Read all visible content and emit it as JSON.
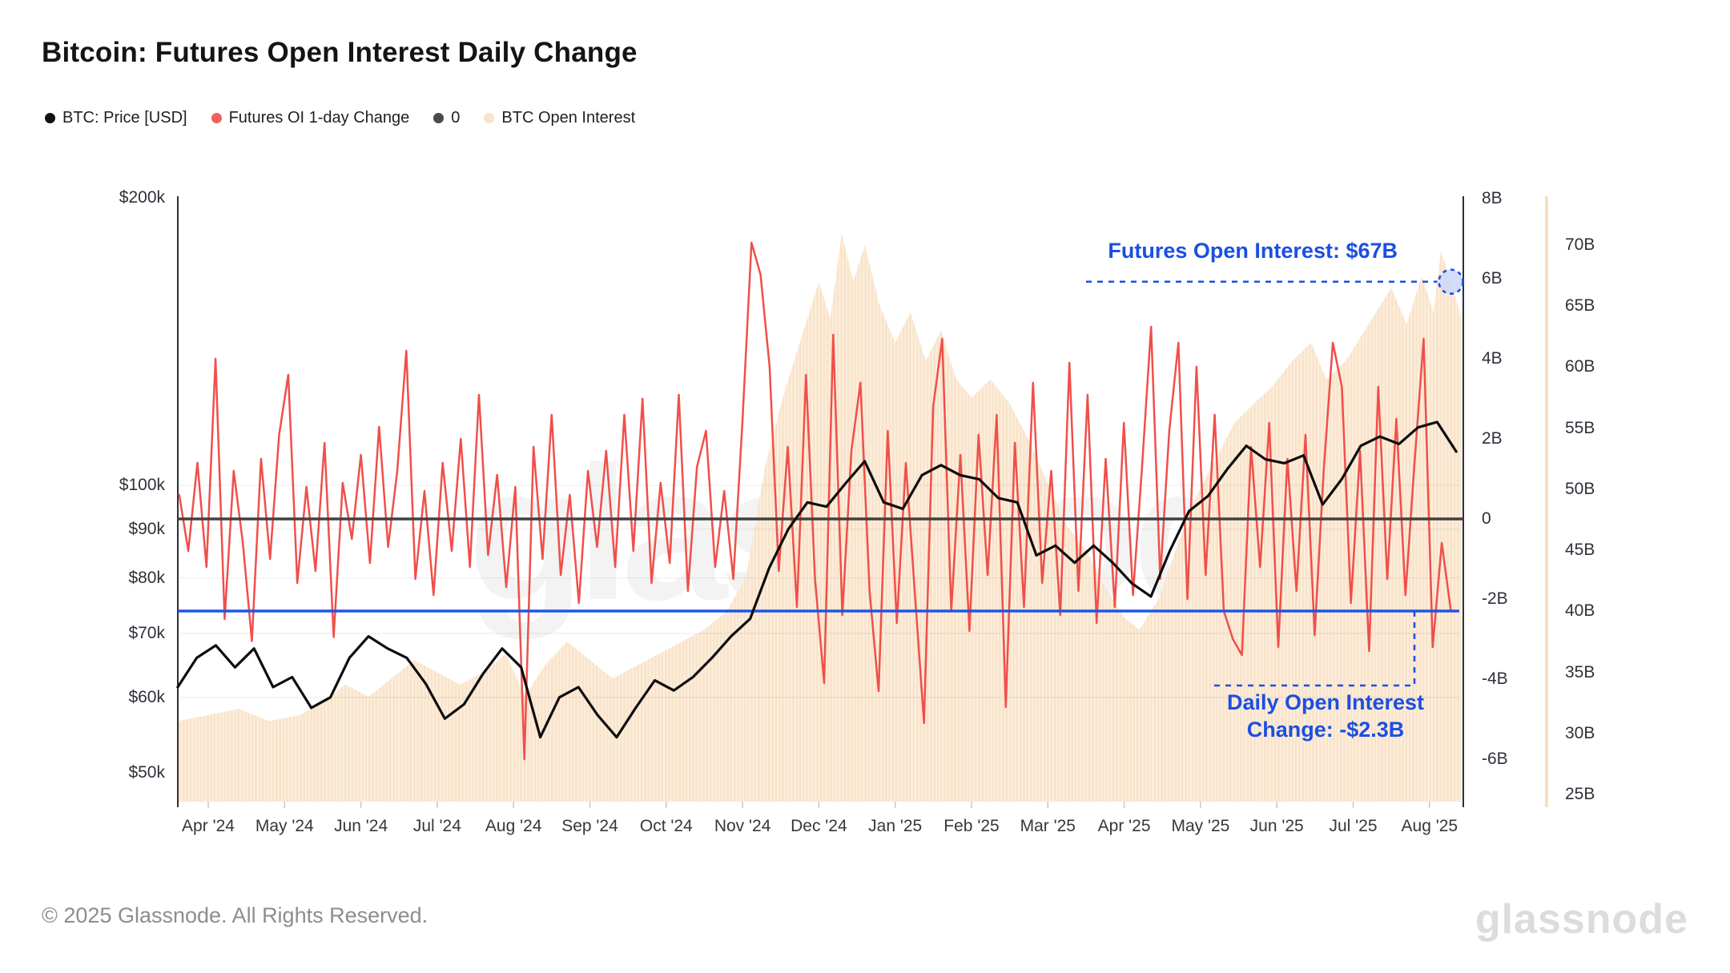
{
  "title": "Bitcoin: Futures Open Interest Daily Change",
  "legend": [
    {
      "label": "BTC: Price [USD]",
      "color": "#111111"
    },
    {
      "label": "Futures OI 1-day Change",
      "color": "#f2605a"
    },
    {
      "label": "0",
      "color": "#4a4a4a"
    },
    {
      "label": "BTC Open Interest",
      "color": "#fae3c8"
    }
  ],
  "watermark": "glassnode",
  "annotations": {
    "oi_label": "Futures Open Interest: $67B",
    "change_line1": "Daily Open Interest",
    "change_line2": "Change: -$2.3B",
    "accent_color": "#1b4fe3"
  },
  "footer": {
    "copyright": "© 2025 Glassnode. All Rights Reserved.",
    "logo": "glassnode"
  },
  "axes": {
    "price_tick_labels": [
      "$200k",
      "$100k",
      "$90k",
      "$80k",
      "$70k",
      "$60k",
      "$50k"
    ],
    "price_tick_values": [
      200,
      100,
      90,
      80,
      70,
      60,
      50
    ],
    "change_tick_labels": [
      "8B",
      "6B",
      "4B",
      "2B",
      "0",
      "-2B",
      "-4B",
      "-6B"
    ],
    "change_tick_values": [
      8,
      6,
      4,
      2,
      0,
      -2,
      -4,
      -6
    ],
    "oi_tick_labels": [
      "70B",
      "65B",
      "60B",
      "55B",
      "50B",
      "45B",
      "40B",
      "35B",
      "30B",
      "25B"
    ],
    "oi_tick_values": [
      70,
      65,
      60,
      55,
      50,
      45,
      40,
      35,
      30,
      25
    ],
    "x_tick_labels": [
      "Apr '24",
      "May '24",
      "Jun '24",
      "Jul '24",
      "Aug '24",
      "Sep '24",
      "Oct '24",
      "Nov '24",
      "Dec '24",
      "Jan '25",
      "Feb '25",
      "Mar '25",
      "Apr '25",
      "May '25",
      "Jun '25",
      "Jul '25",
      "Aug '25"
    ]
  },
  "colors": {
    "price_line": "#0d0d0d",
    "oi_change_line": "#f04f4a",
    "zero_line": "#404040",
    "highlight_line": "#1f57e5",
    "open_interest_fill": "#fcf0e1",
    "open_interest_stripe": "#f6d9b8",
    "gridline": "rgba(0,0,0,0.055)",
    "axis_line_dark": "#2f2f2f",
    "axis_line_peach": "#f6dcba"
  },
  "chart_data": {
    "type": "line",
    "x_unit": "months since Apr 2024 tick (0 = Apr '24, 16 = Aug '25)",
    "price": {
      "name": "BTC: Price [USD]",
      "unit": "thousand USD",
      "scale": "log",
      "axis_range_usd_k": [
        50,
        200
      ],
      "x_start": -0.4,
      "x_step": 0.25,
      "values": [
        61.5,
        66,
        68,
        64.5,
        67.5,
        61.5,
        63,
        58.5,
        60,
        66,
        69.5,
        67.5,
        66,
        62,
        57,
        59,
        63.5,
        67.5,
        64.5,
        54.5,
        60,
        61.5,
        57.5,
        54.5,
        58.5,
        62.5,
        61,
        63,
        66,
        69.5,
        72.5,
        82,
        90,
        96,
        95,
        100.5,
        106,
        96,
        94.5,
        102.5,
        105,
        102.5,
        101.5,
        97,
        96,
        84.5,
        86.5,
        83,
        86.5,
        83,
        79,
        76.5,
        85.5,
        94,
        97.5,
        104,
        110,
        106.5,
        105.5,
        107.5,
        95.5,
        101.5,
        110,
        112.5,
        110.5,
        115,
        116.5,
        108.5
      ]
    },
    "oi_change": {
      "name": "Futures OI 1-day Change",
      "unit": "billion USD",
      "axis_range_b": [
        -7,
        8.5
      ],
      "final_value": -2.3,
      "x_start": -0.38,
      "x_step": 0.119,
      "values": [
        0.6,
        -0.8,
        1.4,
        -1.2,
        4.0,
        -2.5,
        1.2,
        -0.6,
        -3.05,
        1.5,
        -1.0,
        2.1,
        3.6,
        -1.6,
        0.8,
        -1.3,
        1.9,
        -2.95,
        0.9,
        -0.5,
        1.6,
        -1.1,
        2.3,
        -0.7,
        1.2,
        4.2,
        -1.5,
        0.7,
        -1.9,
        1.4,
        -0.8,
        2.0,
        -1.2,
        3.1,
        -0.9,
        1.1,
        -1.7,
        0.8,
        -6.0,
        1.8,
        -1.0,
        2.6,
        -1.4,
        0.6,
        -2.1,
        1.2,
        -0.7,
        1.7,
        -1.2,
        2.6,
        -0.8,
        3.0,
        -1.6,
        0.9,
        -1.1,
        3.1,
        -1.8,
        1.3,
        2.2,
        -1.2,
        0.7,
        -1.5,
        2.4,
        6.9,
        6.1,
        3.8,
        -1.3,
        1.8,
        -2.2,
        3.6,
        -1.5,
        -4.1,
        4.6,
        -2.4,
        1.7,
        3.4,
        -1.8,
        -4.3,
        2.2,
        -2.6,
        1.4,
        -1.9,
        -5.1,
        2.8,
        4.5,
        -2.3,
        1.6,
        -2.8,
        2.1,
        -1.4,
        2.6,
        -4.7,
        1.9,
        -2.2,
        3.4,
        -1.6,
        1.2,
        -2.4,
        3.9,
        -1.8,
        3.1,
        -2.6,
        1.5,
        -2.2,
        2.4,
        -1.9,
        1.3,
        4.8,
        -1.5,
        2.2,
        4.4,
        -2.0,
        3.8,
        -1.4,
        2.6,
        -2.3,
        -3.0,
        -3.4,
        1.8,
        -1.2,
        2.4,
        -3.2,
        1.5,
        -1.8,
        2.1,
        -2.9,
        1.2,
        4.4,
        3.3,
        -2.1,
        1.7,
        -3.3,
        3.3,
        -1.5,
        2.5,
        -1.9,
        1.4,
        4.5,
        -3.2,
        -0.6,
        -2.3
      ]
    },
    "zero_reference": 0,
    "highlight_line_value_b": -2.3,
    "open_interest": {
      "name": "BTC Open Interest",
      "unit": "billion USD",
      "axis_range_b": [
        25,
        74
      ],
      "final_value": 67,
      "final_marker_x": 16.28,
      "points": [
        [
          -0.4,
          31
        ],
        [
          0,
          31.5
        ],
        [
          0.4,
          32
        ],
        [
          0.8,
          31
        ],
        [
          1.2,
          31.5
        ],
        [
          1.5,
          32.5
        ],
        [
          1.8,
          34
        ],
        [
          2.1,
          33
        ],
        [
          2.4,
          34.5
        ],
        [
          2.7,
          36
        ],
        [
          3.0,
          35
        ],
        [
          3.3,
          34
        ],
        [
          3.6,
          35
        ],
        [
          3.9,
          36.5
        ],
        [
          4.15,
          33
        ],
        [
          4.4,
          35.5
        ],
        [
          4.7,
          37.5
        ],
        [
          5.0,
          36
        ],
        [
          5.3,
          34.5
        ],
        [
          5.6,
          35.5
        ],
        [
          5.9,
          36.5
        ],
        [
          6.2,
          37.5
        ],
        [
          6.5,
          38.5
        ],
        [
          6.8,
          40
        ],
        [
          7.05,
          43
        ],
        [
          7.3,
          52
        ],
        [
          7.55,
          58
        ],
        [
          7.8,
          63
        ],
        [
          8.0,
          67
        ],
        [
          8.15,
          64
        ],
        [
          8.3,
          71
        ],
        [
          8.45,
          67
        ],
        [
          8.6,
          70
        ],
        [
          8.8,
          65
        ],
        [
          9.0,
          62
        ],
        [
          9.2,
          64.5
        ],
        [
          9.4,
          60.5
        ],
        [
          9.6,
          63
        ],
        [
          9.8,
          59
        ],
        [
          10.0,
          57.5
        ],
        [
          10.25,
          59
        ],
        [
          10.5,
          57
        ],
        [
          10.75,
          54
        ],
        [
          11.0,
          50.5
        ],
        [
          11.25,
          47
        ],
        [
          11.5,
          45
        ],
        [
          11.75,
          42
        ],
        [
          12.0,
          39.5
        ],
        [
          12.2,
          38.5
        ],
        [
          12.45,
          41
        ],
        [
          12.7,
          45.5
        ],
        [
          12.95,
          49.5
        ],
        [
          13.2,
          52.5
        ],
        [
          13.45,
          55.5
        ],
        [
          13.7,
          57
        ],
        [
          13.95,
          58.5
        ],
        [
          14.2,
          60.5
        ],
        [
          14.45,
          62
        ],
        [
          14.65,
          59
        ],
        [
          14.9,
          60.5
        ],
        [
          15.1,
          62.5
        ],
        [
          15.3,
          64.5
        ],
        [
          15.5,
          66.5
        ],
        [
          15.7,
          63.5
        ],
        [
          15.9,
          67.5
        ],
        [
          16.05,
          64.5
        ],
        [
          16.15,
          69.5
        ],
        [
          16.28,
          67
        ],
        [
          16.42,
          64
        ]
      ]
    }
  }
}
